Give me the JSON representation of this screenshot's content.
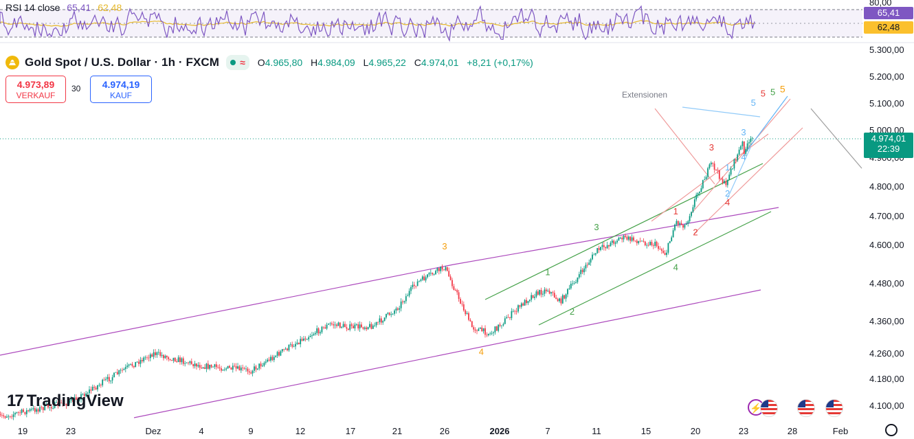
{
  "rsi": {
    "legend_label": "RSI 14 close",
    "rsi_value": "65,41",
    "ma_value": "62,48",
    "axis_top": "80,00",
    "badge_rsi": "65,41",
    "badge_ma": "62,48",
    "rsi_color": "#7e57c2",
    "ma_color": "#e6b82a"
  },
  "header": {
    "title": "Gold Spot / U.S. Dollar · 1h · FXCM",
    "open_label": "O",
    "open": "4.965,80",
    "high_label": "H",
    "high": "4.984,09",
    "low_label": "L",
    "low": "4.965,22",
    "close_label": "C",
    "close": "4.974,01",
    "change": "+8,21 (+0,17%)"
  },
  "trade": {
    "sell_price": "4.973,89",
    "sell_label": "VERKAUF",
    "spread": "30",
    "buy_price": "4.974,19",
    "buy_label": "KAUF"
  },
  "price_badge": {
    "price": "4.974,01",
    "countdown": "22:39",
    "color": "#089981"
  },
  "annotations": {
    "extension_text": "Extensionen"
  },
  "logo": {
    "text": "TradingView"
  },
  "chart_data": {
    "type": "candlestick",
    "symbol": "Gold Spot / U.S. Dollar",
    "timeframe": "1h",
    "y_axis_ticks": [
      "5.300,00",
      "5.200,00",
      "5.100,00",
      "5.000,00",
      "4.900,00",
      "4.800,00",
      "4.700,00",
      "4.600,00",
      "4.480,00",
      "4.360,00",
      "4.260,00",
      "4.180,00",
      "4.100,00"
    ],
    "x_axis_ticks": [
      "19",
      "23",
      "Dez",
      "4",
      "9",
      "12",
      "17",
      "21",
      "26",
      "2026",
      "7",
      "11",
      "15",
      "20",
      "23",
      "28",
      "Feb"
    ],
    "close_path": [
      {
        "x": "17 Nov",
        "y": 4065
      },
      {
        "x": "23 Nov",
        "y": 4110
      },
      {
        "x": "28 Nov",
        "y": 4205
      },
      {
        "x": "1 Dez",
        "y": 4260
      },
      {
        "x": "4 Dez",
        "y": 4220
      },
      {
        "x": "9 Dez",
        "y": 4205
      },
      {
        "x": "12 Dez",
        "y": 4300
      },
      {
        "x": "15 Dez",
        "y": 4350
      },
      {
        "x": "17 Dez",
        "y": 4340
      },
      {
        "x": "19 Dez",
        "y": 4345
      },
      {
        "x": "21 Dez",
        "y": 4400
      },
      {
        "x": "23 Dez",
        "y": 4480
      },
      {
        "x": "26 Dez",
        "y": 4530
      },
      {
        "x": "29 Dez",
        "y": 4340
      },
      {
        "x": "31 Dez",
        "y": 4320
      },
      {
        "x": "2 Jan",
        "y": 4370
      },
      {
        "x": "5 Jan",
        "y": 4440
      },
      {
        "x": "7 Jan",
        "y": 4460
      },
      {
        "x": "8 Jan",
        "y": 4420
      },
      {
        "x": "11 Jan",
        "y": 4580
      },
      {
        "x": "13 Jan",
        "y": 4625
      },
      {
        "x": "16 Jan",
        "y": 4600
      },
      {
        "x": "17 Jan",
        "y": 4570
      },
      {
        "x": "18 Jan",
        "y": 4680
      },
      {
        "x": "19 Jan",
        "y": 4665
      },
      {
        "x": "20 Jan",
        "y": 4760
      },
      {
        "x": "21 Jan",
        "y": 4880
      },
      {
        "x": "22 Jan",
        "y": 4790
      },
      {
        "x": "22 Jan",
        "y": 4830
      },
      {
        "x": "23 Jan",
        "y": 4960
      },
      {
        "x": "23 Jan",
        "y": 4920
      },
      {
        "x": "24 Jan",
        "y": 4974
      }
    ],
    "wave_labels": [
      {
        "text": "3",
        "color": "#f59e0b",
        "x": "26 Dez",
        "y": 4585
      },
      {
        "text": "4",
        "color": "#f59e0b",
        "x": "30 Dez",
        "y": 4255
      },
      {
        "text": "1",
        "color": "#43a047",
        "x": "7 Jan",
        "y": 4505
      },
      {
        "text": "2",
        "color": "#43a047",
        "x": "9 Jan",
        "y": 4380
      },
      {
        "text": "3",
        "color": "#43a047",
        "x": "11 Jan",
        "y": 4650
      },
      {
        "text": "4",
        "color": "#43a047",
        "x": "18 Jan",
        "y": 4520
      },
      {
        "text": "1",
        "color": "#e53935",
        "x": "18 Jan",
        "y": 4705
      },
      {
        "text": "2",
        "color": "#e53935",
        "x": "20 Jan",
        "y": 4632
      },
      {
        "text": "3",
        "color": "#e53935",
        "x": "21 Jan",
        "y": 4925
      },
      {
        "text": "4",
        "color": "#e53935",
        "x": "22 Jan",
        "y": 4735
      },
      {
        "text": "1",
        "color": "#64b5f6",
        "x": "22 Jan",
        "y": 4855
      },
      {
        "text": "2",
        "color": "#64b5f6",
        "x": "22 Jan",
        "y": 4765
      },
      {
        "text": "3",
        "color": "#64b5f6",
        "x": "23 Jan",
        "y": 4980
      },
      {
        "text": "4",
        "color": "#64b5f6",
        "x": "23 Jan",
        "y": 4890
      },
      {
        "text": "5",
        "color": "#64b5f6",
        "x": "24 Jan",
        "y": 5090
      },
      {
        "text": "5",
        "color": "#e53935",
        "x": "25 Jan",
        "y": 5125
      },
      {
        "text": "5",
        "color": "#43a047",
        "x": "26 Jan",
        "y": 5130
      },
      {
        "text": "5",
        "color": "#f59e0b",
        "x": "27 Jan",
        "y": 5140
      }
    ]
  }
}
